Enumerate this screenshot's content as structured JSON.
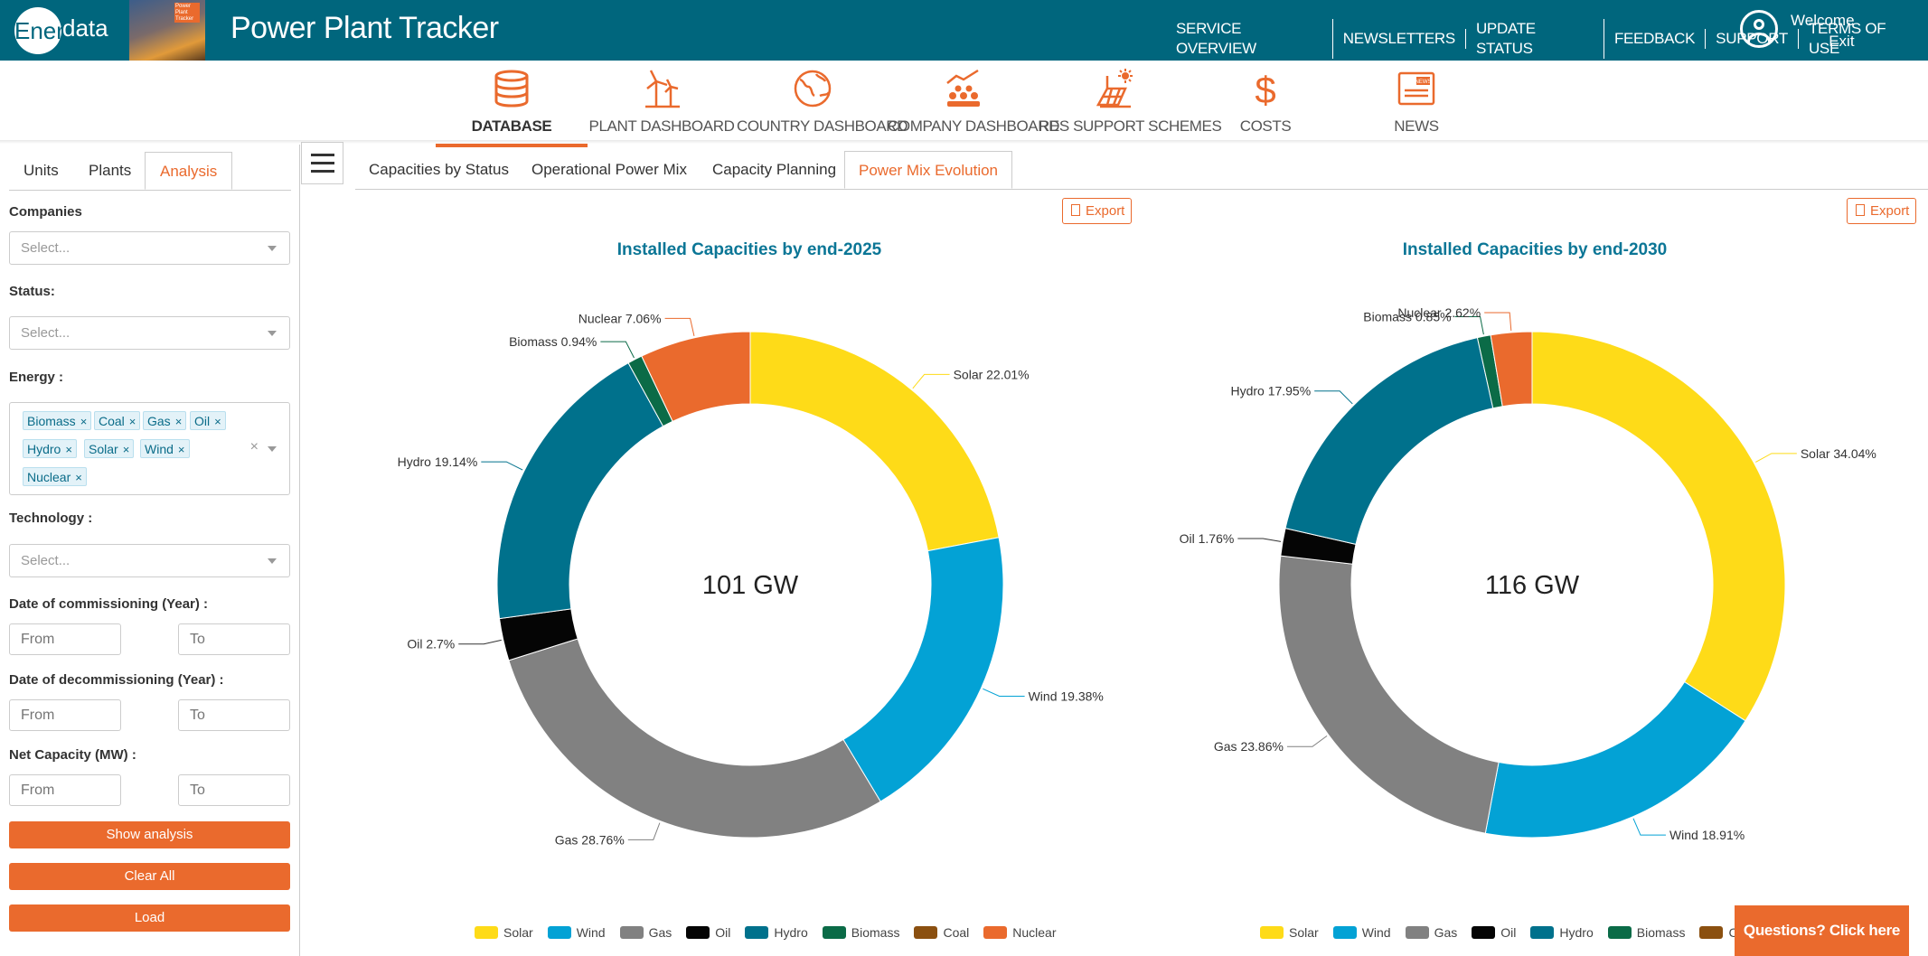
{
  "header": {
    "logo_first": "Ener",
    "logo_rest": "data",
    "thumb_text": "Power Plant Tracker",
    "app_title": "Power Plant Tracker",
    "links": [
      "SERVICE OVERVIEW",
      "NEWSLETTERS",
      "UPDATE STATUS",
      "FEEDBACK",
      "SUPPORT",
      "TERMS OF USE"
    ],
    "welcome": "Welcome",
    "exit": "Exit",
    "bg_color": "#00667d"
  },
  "main_nav": [
    {
      "label": "DATABASE",
      "icon": "database-icon",
      "active": true
    },
    {
      "label": "PLANT DASHBOARD",
      "icon": "wind-turbine-icon",
      "active": false
    },
    {
      "label": "COUNTRY DASHBOARD",
      "icon": "globe-icon",
      "active": false
    },
    {
      "label": "COMPANY DASHBOARD",
      "icon": "company-chart-icon",
      "active": false
    },
    {
      "label": "RES SUPPORT SCHEMES",
      "icon": "solar-panel-icon",
      "active": false
    },
    {
      "label": "COSTS",
      "icon": "dollar-icon",
      "active": false
    },
    {
      "label": "NEWS",
      "icon": "newspaper-icon",
      "active": false
    }
  ],
  "sidebar": {
    "tabs": [
      "Units",
      "Plants",
      "Analysis"
    ],
    "active_tab": "Analysis",
    "companies_label": "Companies",
    "companies_placeholder": "Select...",
    "status_label": "Status:",
    "status_placeholder": "Select...",
    "energy_label": "Energy :",
    "energy_tags": [
      "Biomass",
      "Coal",
      "Gas",
      "Oil",
      "Hydro",
      "Solar",
      "Wind",
      "Nuclear"
    ],
    "technology_label": "Technology :",
    "technology_placeholder": "Select...",
    "commissioning_label": "Date of commissioning (Year) :",
    "decommissioning_label": "Date of decommissioning (Year) :",
    "capacity_label": "Net Capacity (MW) :",
    "from_placeholder": "From",
    "to_placeholder": "To",
    "show_analysis": "Show analysis",
    "clear_all": "Clear All",
    "load": "Load"
  },
  "content_tabs": [
    "Capacities by Status",
    "Operational Power Mix",
    "Capacity Planning",
    "Power Mix Evolution"
  ],
  "active_content_tab": "Power Mix Evolution",
  "export_label": "Export",
  "questions_label": "Questions? Click here",
  "accent_color": "#ea6a2d",
  "chart_data": [
    {
      "type": "pie",
      "title": "Installed Capacities by end-2025",
      "center_label": "101 GW",
      "legend_position": "bottom",
      "slices": [
        {
          "name": "Solar",
          "value": 22.01,
          "label": "Solar 22.01%",
          "color": "#fedb18"
        },
        {
          "name": "Wind",
          "value": 19.38,
          "label": "Wind 19.38%",
          "color": "#03a2d5"
        },
        {
          "name": "Gas",
          "value": 28.76,
          "label": "Gas 28.76%",
          "color": "#818181"
        },
        {
          "name": "Oil",
          "value": 2.7,
          "label": "Oil 2.7%",
          "color": "#050505"
        },
        {
          "name": "Hydro",
          "value": 19.14,
          "label": "Hydro 19.14%",
          "color": "#00718c"
        },
        {
          "name": "Biomass",
          "value": 0.94,
          "label": "Biomass 0.94%",
          "color": "#0b6b47"
        },
        {
          "name": "Nuclear",
          "value": 7.06,
          "label": "Nuclear 7.06%",
          "color": "#ea6a2d"
        }
      ],
      "legend": [
        {
          "name": "Solar",
          "color": "#fedb18"
        },
        {
          "name": "Wind",
          "color": "#03a2d5"
        },
        {
          "name": "Gas",
          "color": "#818181"
        },
        {
          "name": "Oil",
          "color": "#050505"
        },
        {
          "name": "Hydro",
          "color": "#00718c"
        },
        {
          "name": "Biomass",
          "color": "#0b6b47"
        },
        {
          "name": "Coal",
          "color": "#8b5010"
        },
        {
          "name": "Nuclear",
          "color": "#ea6a2d"
        }
      ]
    },
    {
      "type": "pie",
      "title": "Installed Capacities by end-2030",
      "center_label": "116 GW",
      "legend_position": "bottom",
      "slices": [
        {
          "name": "Solar",
          "value": 34.04,
          "label": "Solar 34.04%",
          "color": "#fedb18"
        },
        {
          "name": "Wind",
          "value": 18.91,
          "label": "Wind 18.91%",
          "color": "#03a2d5"
        },
        {
          "name": "Gas",
          "value": 23.86,
          "label": "Gas 23.86%",
          "color": "#818181"
        },
        {
          "name": "Oil",
          "value": 1.76,
          "label": "Oil 1.76%",
          "color": "#050505"
        },
        {
          "name": "Hydro",
          "value": 17.95,
          "label": "Hydro 17.95%",
          "color": "#00718c"
        },
        {
          "name": "Biomass",
          "value": 0.85,
          "label": "Biomass 0.85%",
          "color": "#0b6b47"
        },
        {
          "name": "Nuclear",
          "value": 2.62,
          "label": "Nuclear 2.62%",
          "color": "#ea6a2d"
        }
      ],
      "legend": [
        {
          "name": "Solar",
          "color": "#fedb18"
        },
        {
          "name": "Wind",
          "color": "#03a2d5"
        },
        {
          "name": "Gas",
          "color": "#818181"
        },
        {
          "name": "Oil",
          "color": "#050505"
        },
        {
          "name": "Hydro",
          "color": "#00718c"
        },
        {
          "name": "Biomass",
          "color": "#0b6b47"
        },
        {
          "name": "Coal",
          "color": "#8b5010"
        }
      ]
    }
  ]
}
